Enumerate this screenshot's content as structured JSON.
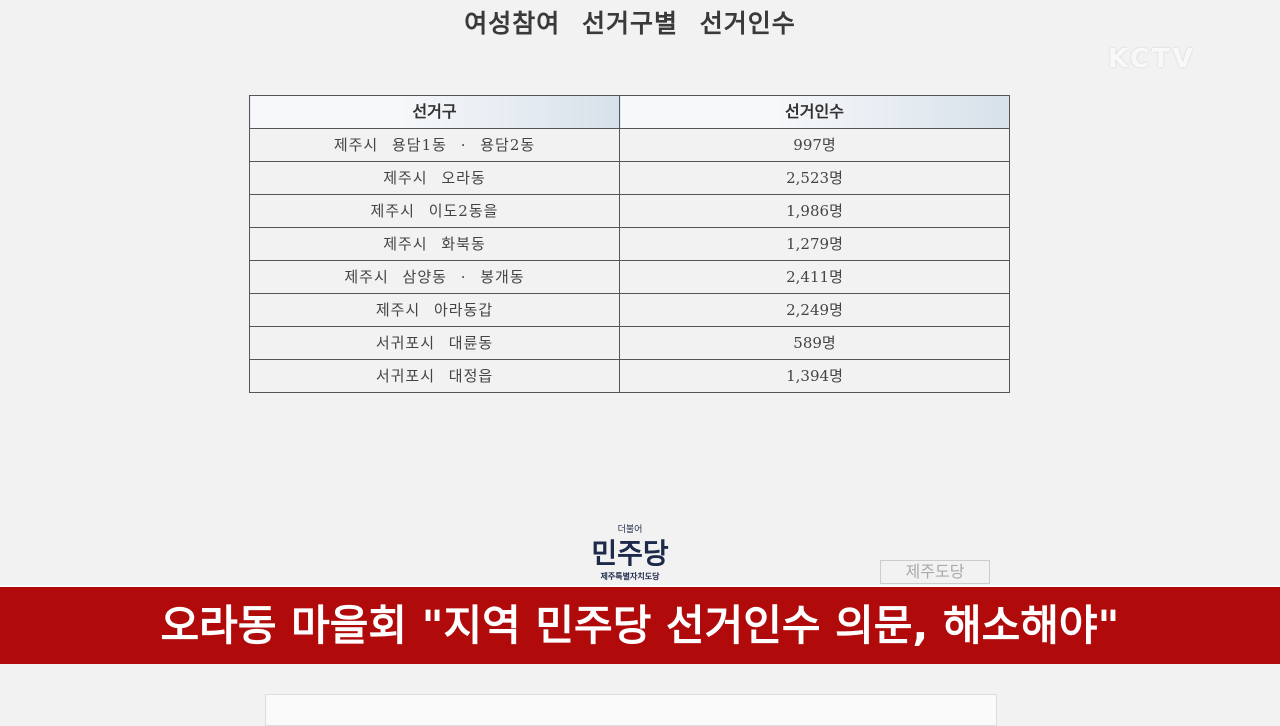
{
  "document": {
    "title": "여성참여 선거구별 선거인수",
    "headers": [
      "선거구",
      "선거인수"
    ],
    "rows": [
      [
        "제주시 용담1동 · 용담2동",
        "997명"
      ],
      [
        "제주시 오라동",
        "2,523명"
      ],
      [
        "제주시 이도2동을",
        "1,986명"
      ],
      [
        "제주시 화북동",
        "1,279명"
      ],
      [
        "제주시 삼양동 · 봉개동",
        "2,411명"
      ],
      [
        "제주시 아라동갑",
        "2,249명"
      ],
      [
        "서귀포시 대륜동",
        "589명"
      ],
      [
        "서귀포시 대정읍",
        "1,394명"
      ]
    ]
  },
  "logo": {
    "small": "더불어",
    "main": "민주당",
    "sub": "제주특별자치도당"
  },
  "seal": "제주도당",
  "broadcaster": "KCTV",
  "caption": "오라동 마을회 \"지역 민주당 선거인수 의문, 해소해야\"",
  "colors": {
    "banner": "#b10a0a"
  }
}
